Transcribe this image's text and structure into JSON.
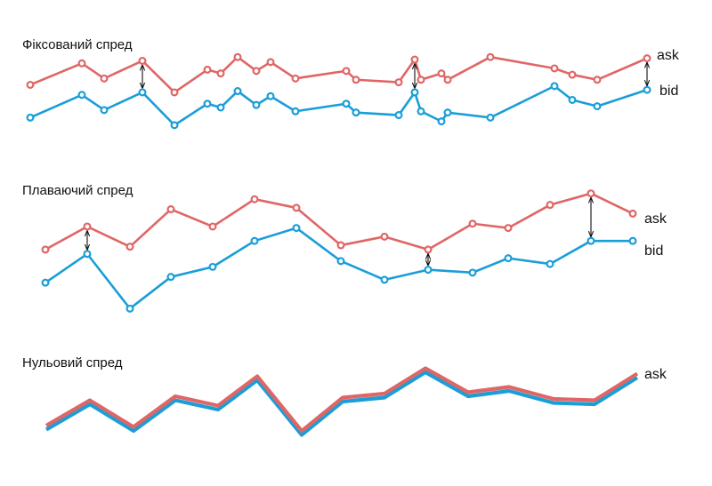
{
  "colors": {
    "ask": "#e06666",
    "bid": "#1a9ed8",
    "arrow": "#111111"
  },
  "chart_data": [
    {
      "type": "line",
      "title": "Фіксований спред",
      "series": [
        {
          "name": "ask",
          "values": [
            68,
            85,
            73,
            87,
            62,
            80,
            77,
            90,
            79,
            86,
            73,
            79,
            72,
            70,
            88,
            72,
            77,
            72,
            90,
            81,
            76,
            72,
            89
          ]
        },
        {
          "name": "bid",
          "values": [
            42,
            60,
            48,
            62,
            36,
            53,
            50,
            63,
            52,
            59,
            47,
            53,
            46,
            44,
            62,
            47,
            39,
            46,
            42,
            67,
            56,
            51,
            64
          ]
        }
      ],
      "spread_arrows_at": [
        3,
        14,
        22
      ]
    },
    {
      "type": "line",
      "title": "Плаваючий спред",
      "series": [
        {
          "name": "ask",
          "values": [
            55,
            71,
            57,
            83,
            71,
            90,
            84,
            58,
            64,
            55,
            73,
            70,
            86,
            94,
            80
          ]
        },
        {
          "name": "bid",
          "values": [
            32,
            52,
            14,
            36,
            43,
            61,
            70,
            47,
            34,
            41,
            39,
            49,
            45,
            61,
            61
          ]
        }
      ],
      "spread_arrows_at": [
        1,
        9,
        13
      ]
    },
    {
      "type": "line",
      "title": "Нульовий спред",
      "series": [
        {
          "name": "ask",
          "values": [
            33,
            52,
            32,
            55,
            48,
            70,
            29,
            54,
            57,
            76,
            58,
            62,
            53,
            52,
            72
          ]
        },
        {
          "name": "bid",
          "values": [
            32,
            51,
            31,
            54,
            47,
            69,
            28,
            53,
            56,
            75,
            57,
            61,
            52,
            51,
            71
          ]
        }
      ],
      "labels_shown": [
        "ask"
      ]
    }
  ]
}
